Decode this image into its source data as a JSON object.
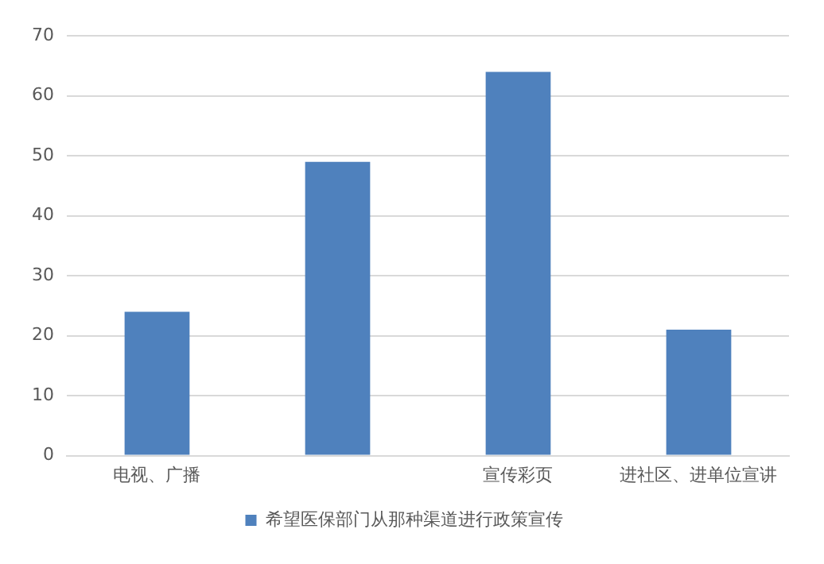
{
  "chart_data": {
    "type": "bar",
    "categories": [
      "电视、广播",
      null,
      "宣传彩页",
      "进社区、进单位宣讲"
    ],
    "series": [
      {
        "name": "希望医保部门从那种渠道进行政策宣传",
        "color": "#4f81bd",
        "values": [
          24,
          49,
          64,
          21
        ]
      }
    ],
    "ylim": [
      0,
      70
    ],
    "yticks": [
      0,
      10,
      20,
      30,
      40,
      50,
      60,
      70
    ],
    "grid": "y",
    "legend": "bottom"
  }
}
